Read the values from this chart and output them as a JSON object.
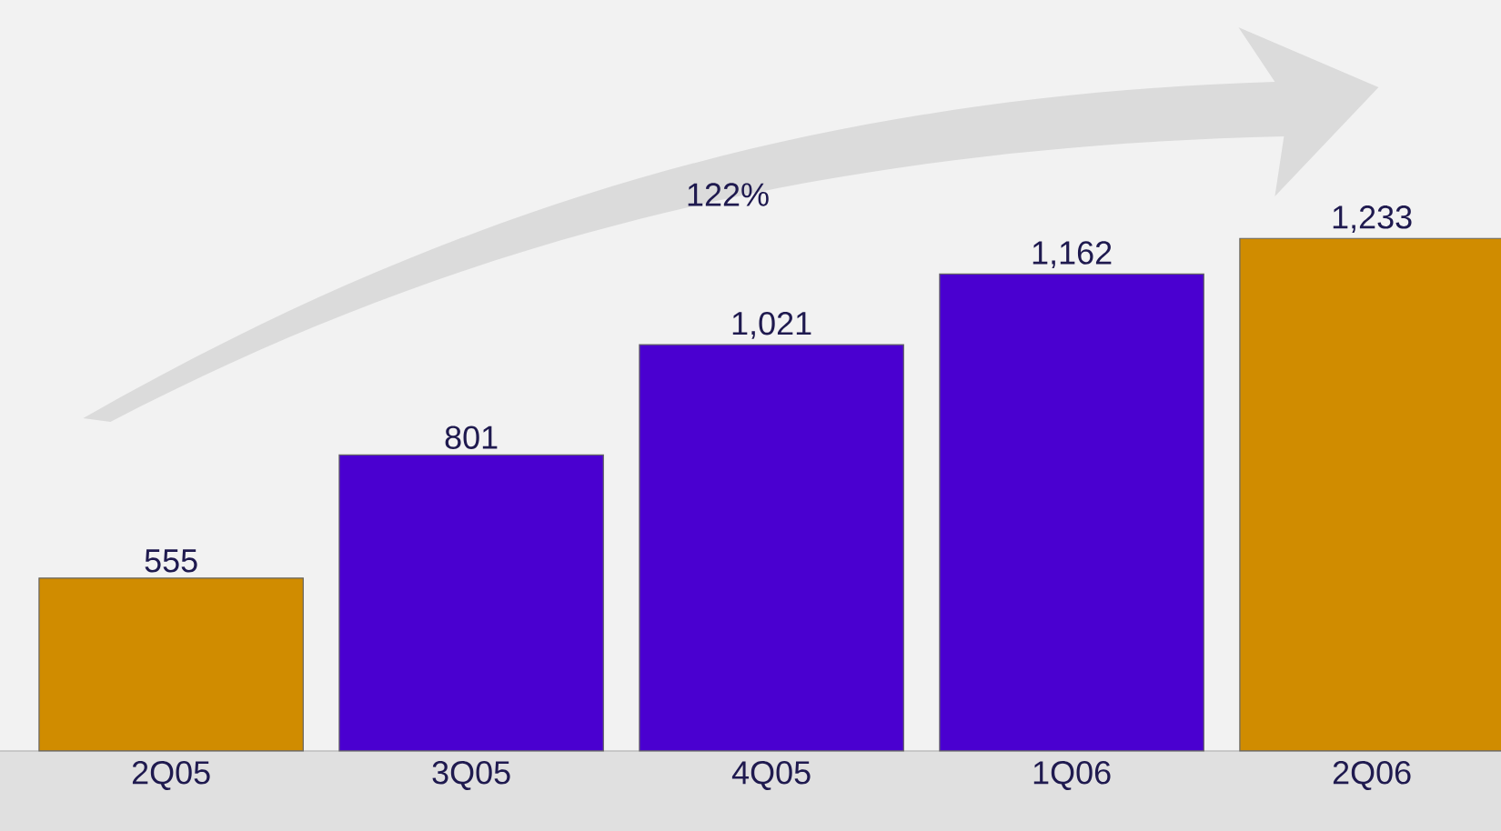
{
  "chart_data": {
    "type": "bar",
    "categories": [
      "2Q05",
      "3Q05",
      "4Q05",
      "1Q06",
      "2Q06"
    ],
    "values": [
      555,
      801,
      1021,
      1162,
      1233
    ],
    "value_labels": [
      "555",
      "801",
      "1,021",
      "1,162",
      "1,233"
    ],
    "colors": [
      "#d08c00",
      "#4a00d0",
      "#4a00d0",
      "#4a00d0",
      "#d08c00"
    ],
    "ylim": [
      210,
      1709
    ],
    "annotations": [
      "122%"
    ]
  }
}
